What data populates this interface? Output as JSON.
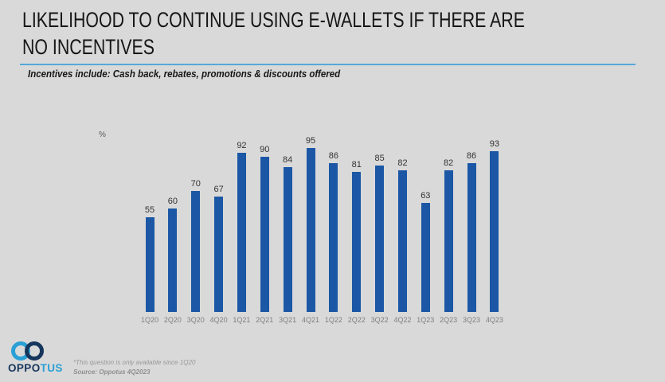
{
  "header": {
    "title_line1": "LIKELIHOOD TO CONTINUE USING E-WALLETS IF THERE ARE",
    "title_line2": "NO INCENTIVES",
    "subtitle": "Incentives include: Cash back, rebates, promotions & discounts offered",
    "rule_color": "#56a8d8"
  },
  "chart_data": {
    "type": "bar",
    "title": "LIKELIHOOD TO CONTINUE USING E-WALLETS IF THERE ARE NO INCENTIVES",
    "subtitle": "Incentives include: Cash back, rebates, promotions & discounts offered",
    "ylabel": "%",
    "xlabel": "",
    "categories": [
      "1Q20",
      "2Q20",
      "3Q20",
      "4Q20",
      "1Q21",
      "2Q21",
      "3Q21",
      "4Q21",
      "1Q22",
      "2Q22",
      "3Q22",
      "4Q22",
      "1Q23",
      "2Q23",
      "3Q23",
      "4Q23"
    ],
    "values": [
      55,
      60,
      70,
      67,
      92,
      90,
      84,
      95,
      86,
      81,
      85,
      82,
      63,
      82,
      86,
      93
    ],
    "ylim": [
      0,
      100
    ],
    "grid": false,
    "legend": false,
    "value_labels_shown": true,
    "bar_color": "#1b57a5",
    "value_label_color": "#333333",
    "category_label_color": "#7f7f7f"
  },
  "footer": {
    "note": "*This question is only available since 1Q20",
    "source": "Source: Oppotus 4Q2023",
    "logo": {
      "text_primary": "OPPO",
      "text_secondary": "TUS",
      "color_primary": "#16365c",
      "color_secondary": "#2aa0d5"
    }
  }
}
